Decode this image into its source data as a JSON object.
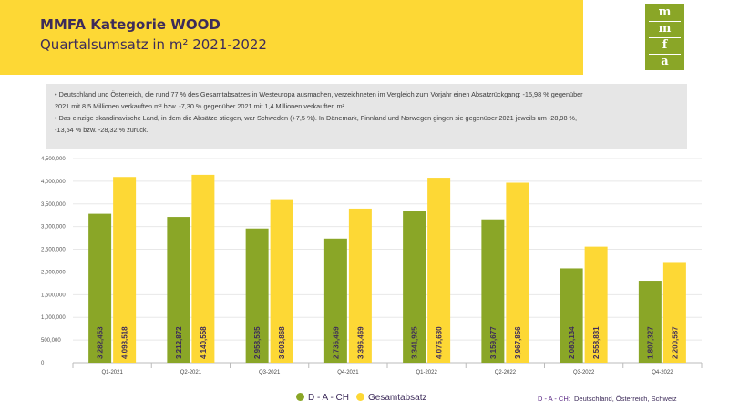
{
  "header": {
    "title": "MMFA Kategorie WOOD",
    "subtitle": "Quartalsumsatz in m² 2021-2022"
  },
  "logo": {
    "letters": [
      "m",
      "m",
      "f",
      "a"
    ]
  },
  "notes": [
    "• Deutschland und Österreich, die rund 77 % des Gesamtabsatzes in Westeuropa ausmachen, verzeichneten im Vergleich zum Vorjahr einen Absatzrückgang: -15,98 % gegenüber",
    "2021 mit 8,5 Millionen verkauften m² bzw. -7,30 % gegenüber 2021 mit 1,4 Millionen verkauften m².",
    "• Das einzige skandinavische Land, in dem die Absätze stiegen, war Schweden (+7,5 %). In Dänemark, Finnland und Norwegen gingen sie gegenüber 2021 jeweils um -28,98 %,",
    "-13,54 % bzw. -28,32 % zurück."
  ],
  "footnote": {
    "key": "D - A - CH:",
    "text": "Deutschland, Österreich, Schweiz"
  },
  "colors": {
    "dach": "#8aa627",
    "gesamt": "#fdd835"
  },
  "chart_data": {
    "type": "bar",
    "categories": [
      "Q1-2021",
      "Q2-2021",
      "Q3-2021",
      "Q4-2021",
      "Q1-2022",
      "Q2-2022",
      "Q3-2022",
      "Q4-2022"
    ],
    "series": [
      {
        "name": "D - A - CH",
        "values": [
          3282453,
          3212872,
          2958535,
          2736469,
          3341925,
          3159677,
          2080134,
          1807327
        ],
        "labels": [
          "3,282,453",
          "3,212,872",
          "2,958,535",
          "2,736,469",
          "3,341,925",
          "3,159,677",
          "2,080,134",
          "1,807,327"
        ]
      },
      {
        "name": "Gesamtabsatz",
        "values": [
          4093518,
          4140558,
          3603868,
          3396469,
          4076630,
          3967856,
          2558831,
          2200587
        ],
        "labels": [
          "4,093,518",
          "4,140,558",
          "3,603,868",
          "3,396,469",
          "4,076,630",
          "3,967,856",
          "2,558,831",
          "2,200,587"
        ]
      }
    ],
    "ylim": [
      0,
      4500000
    ],
    "yticks": [
      0,
      500000,
      1000000,
      1500000,
      2000000,
      2500000,
      3000000,
      3500000,
      4000000,
      4500000
    ],
    "ytick_labels": [
      "0",
      "500,000",
      "1,000,000",
      "1,500,000",
      "2,000,000",
      "2,500,000",
      "3,000,000",
      "3,500,000",
      "4,000,000",
      "4,500,000"
    ],
    "grid": true,
    "legend": "bottom"
  }
}
